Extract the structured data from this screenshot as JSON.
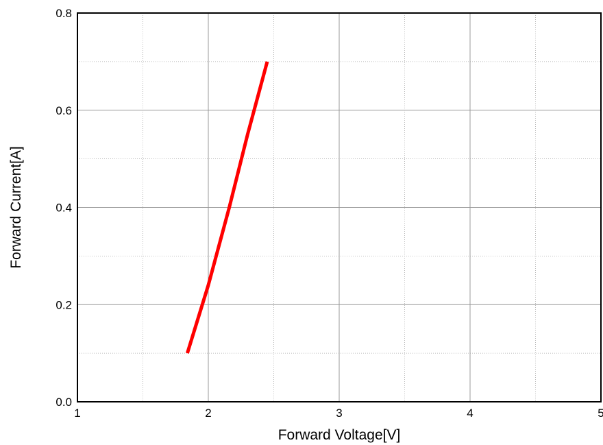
{
  "chart_data": {
    "type": "line",
    "xlabel": "Forward Voltage[V]",
    "ylabel": "Forward Current[A]",
    "xlim": [
      1,
      5
    ],
    "ylim": [
      0.0,
      0.8
    ],
    "x_ticks": [
      1,
      2,
      3,
      4,
      5
    ],
    "x_tick_labels": [
      "1",
      "2",
      "3",
      "4",
      "5"
    ],
    "y_ticks": [
      0.0,
      0.2,
      0.4,
      0.6,
      0.8
    ],
    "y_tick_labels": [
      "0.0",
      "0.2",
      "0.4",
      "0.6",
      "0.8"
    ],
    "x_minor_ticks": [
      1.5,
      2.5,
      3.5,
      4.5
    ],
    "y_minor_ticks": [
      0.1,
      0.3,
      0.5,
      0.7
    ],
    "grid": true,
    "legend": "none",
    "series": [
      {
        "color": "#ff0000",
        "x": [
          1.84,
          2.0,
          2.16,
          2.3,
          2.45
        ],
        "y": [
          0.1,
          0.24,
          0.4,
          0.55,
          0.7
        ]
      }
    ]
  }
}
